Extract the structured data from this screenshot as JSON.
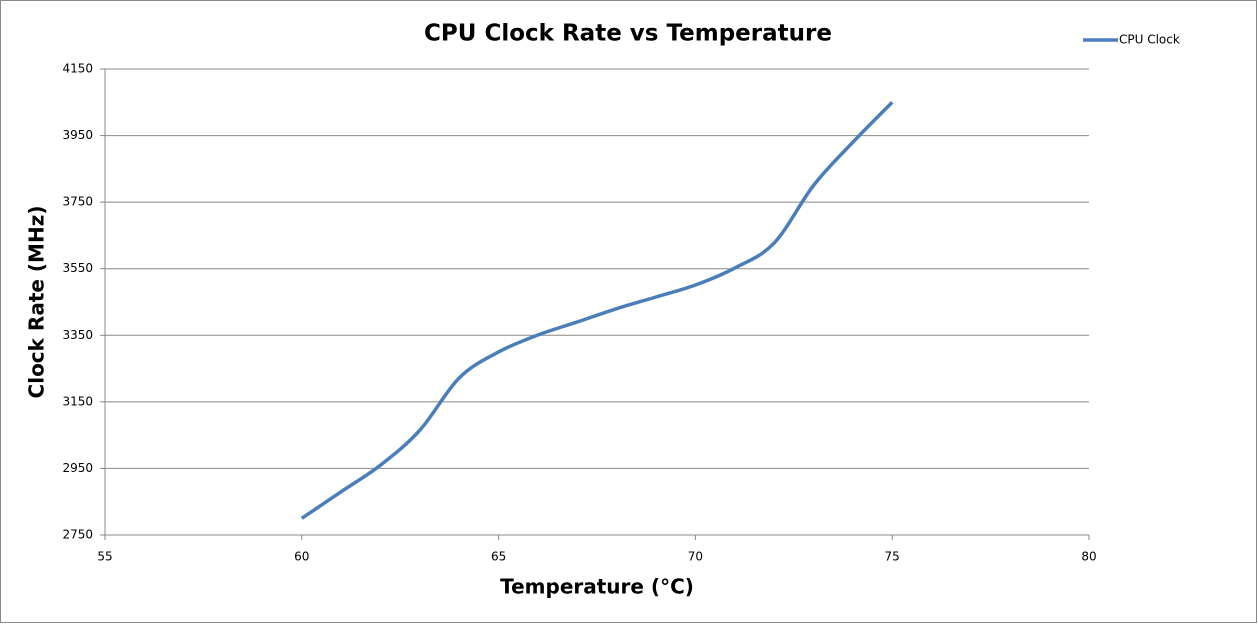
{
  "chart_data": {
    "type": "line",
    "title": "CPU Clock Rate vs Temperature",
    "x_label": "Temperature (°C)",
    "y_label": "Clock Rate (MHz)",
    "x": [
      60,
      61,
      62,
      63,
      64,
      65,
      66,
      67,
      68,
      69,
      70,
      71,
      72,
      73,
      74,
      75
    ],
    "series": [
      {
        "name": "CPU Clock",
        "color": "#4a7ebb",
        "values": [
          2800,
          2880,
          2960,
          3065,
          3222,
          3300,
          3351,
          3390,
          3430,
          3465,
          3501,
          3552,
          3627,
          3800,
          3930,
          4050
        ]
      }
    ],
    "xlim": [
      55,
      80
    ],
    "xticks": [
      55,
      60,
      65,
      70,
      75,
      80
    ],
    "ylim": [
      2750,
      4150
    ],
    "yticks": [
      2750,
      2950,
      3150,
      3350,
      3550,
      3750,
      3950,
      4150
    ],
    "grid": true,
    "smooth": true,
    "legend": "top-right"
  }
}
